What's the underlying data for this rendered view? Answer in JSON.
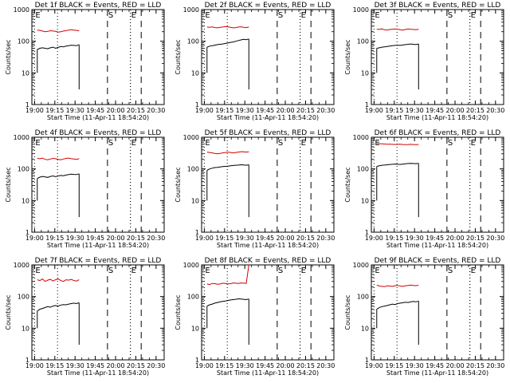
{
  "chart_data": [
    {
      "type": "line",
      "title": "Det 1f BLACK = Events, RED = LLD",
      "xlabel": "Start Time (11-Apr-11 18:54:20)",
      "ylabel": "Counts/sec",
      "yscale": "log",
      "ylim": [
        1,
        1000
      ],
      "xlim": [
        18.9667,
        20.6
      ],
      "x_tick_labels": [
        "19:00",
        "19:15",
        "19:30",
        "19:45",
        "20:00",
        "20:15",
        "20:30"
      ],
      "y_tick_labels": [
        "1",
        "10",
        "100",
        "1000"
      ],
      "lld_values": [
        225,
        220,
        210,
        200,
        205,
        215,
        210,
        205,
        195,
        200,
        210,
        215,
        225,
        230,
        225,
        220,
        215
      ],
      "events_values": [
        55,
        60,
        62,
        60,
        58,
        62,
        65,
        60,
        64,
        68,
        66,
        70,
        72,
        75,
        74,
        72,
        78
      ],
      "markers": [
        {
          "label": "E",
          "kind": "dotted",
          "time": "19:00"
        },
        {
          "label": "",
          "kind": "dotted",
          "time": "19:17"
        },
        {
          "label": "S",
          "kind": "dashed",
          "time": "19:54"
        },
        {
          "label": "",
          "kind": "dotted",
          "time": "20:11"
        },
        {
          "label": "E",
          "kind": "dotted",
          "time": "20:11"
        },
        {
          "label": "",
          "kind": "dashed",
          "time": "20:19"
        }
      ]
    },
    {
      "type": "line",
      "title": "Det 2f BLACK = Events, RED = LLD",
      "xlabel": "Start Time (11-Apr-11 18:54:20)",
      "ylabel": "Counts/sec",
      "yscale": "log",
      "ylim": [
        1,
        1000
      ],
      "xlim": [
        18.9667,
        20.6
      ],
      "x_tick_labels": [
        "19:00",
        "19:15",
        "19:30",
        "19:45",
        "20:00",
        "20:15",
        "20:30"
      ],
      "y_tick_labels": [
        "1",
        "10",
        "100",
        "1000"
      ],
      "lld_values": [
        280,
        275,
        285,
        270,
        265,
        275,
        280,
        290,
        285,
        275,
        265,
        270,
        280,
        285,
        275,
        270,
        280
      ],
      "events_values": [
        65,
        70,
        72,
        75,
        78,
        80,
        82,
        85,
        88,
        92,
        95,
        100,
        105,
        110,
        115,
        112,
        118
      ],
      "markers": [
        {
          "label": "E",
          "kind": "dotted",
          "time": "19:00"
        },
        {
          "label": "",
          "kind": "dotted",
          "time": "19:17"
        },
        {
          "label": "S",
          "kind": "dashed",
          "time": "19:54"
        },
        {
          "label": "",
          "kind": "dotted",
          "time": "20:11"
        },
        {
          "label": "E",
          "kind": "dotted",
          "time": "20:11"
        },
        {
          "label": "",
          "kind": "dashed",
          "time": "20:19"
        }
      ]
    },
    {
      "type": "line",
      "title": "Det 3f BLACK = Events, RED = LLD",
      "xlabel": "Start Time (11-Apr-11 18:54:20)",
      "ylabel": "Counts/sec",
      "yscale": "log",
      "ylim": [
        1,
        1000
      ],
      "xlim": [
        18.9667,
        20.6
      ],
      "x_tick_labels": [
        "19:00",
        "19:15",
        "19:30",
        "19:45",
        "20:00",
        "20:15",
        "20:30"
      ],
      "y_tick_labels": [
        "1",
        "10",
        "100",
        "1000"
      ],
      "lld_values": [
        240,
        235,
        245,
        230,
        225,
        235,
        240,
        245,
        240,
        230,
        225,
        235,
        245,
        240,
        235,
        230,
        240
      ],
      "events_values": [
        60,
        62,
        65,
        66,
        68,
        70,
        72,
        74,
        75,
        74,
        76,
        78,
        80,
        82,
        80,
        78,
        82
      ],
      "markers": [
        {
          "label": "E",
          "kind": "dotted",
          "time": "19:00"
        },
        {
          "label": "",
          "kind": "dotted",
          "time": "19:17"
        },
        {
          "label": "S",
          "kind": "dashed",
          "time": "19:54"
        },
        {
          "label": "",
          "kind": "dotted",
          "time": "20:11"
        },
        {
          "label": "E",
          "kind": "dotted",
          "time": "20:11"
        },
        {
          "label": "",
          "kind": "dashed",
          "time": "20:19"
        }
      ]
    },
    {
      "type": "line",
      "title": "Det 4f BLACK = Events, RED = LLD",
      "xlabel": "Start Time (11-Apr-11 18:54:20)",
      "ylabel": "Counts/sec",
      "yscale": "log",
      "ylim": [
        1,
        1000
      ],
      "xlim": [
        18.9667,
        20.6
      ],
      "x_tick_labels": [
        "19:00",
        "19:15",
        "19:30",
        "19:45",
        "20:00",
        "20:15",
        "20:30"
      ],
      "y_tick_labels": [
        "1",
        "10",
        "100",
        "1000"
      ],
      "lld_values": [
        215,
        210,
        220,
        200,
        195,
        205,
        215,
        210,
        200,
        195,
        205,
        215,
        220,
        210,
        205,
        200,
        210
      ],
      "events_values": [
        50,
        55,
        58,
        56,
        54,
        58,
        60,
        57,
        60,
        62,
        61,
        64,
        66,
        68,
        67,
        66,
        70
      ],
      "markers": [
        {
          "label": "E",
          "kind": "dotted",
          "time": "19:00"
        },
        {
          "label": "",
          "kind": "dotted",
          "time": "19:17"
        },
        {
          "label": "S",
          "kind": "dashed",
          "time": "19:54"
        },
        {
          "label": "",
          "kind": "dotted",
          "time": "20:11"
        },
        {
          "label": "E",
          "kind": "dotted",
          "time": "20:11"
        },
        {
          "label": "",
          "kind": "dashed",
          "time": "20:19"
        }
      ]
    },
    {
      "type": "line",
      "title": "Det 5f BLACK = Events, RED = LLD",
      "xlabel": "Start Time (11-Apr-11 18:54:20)",
      "ylabel": "Counts/sec",
      "yscale": "log",
      "ylim": [
        1,
        1000
      ],
      "xlim": [
        18.9667,
        20.6
      ],
      "x_tick_labels": [
        "19:00",
        "19:15",
        "19:30",
        "19:45",
        "20:00",
        "20:15",
        "20:30"
      ],
      "y_tick_labels": [
        "1",
        "10",
        "100",
        "1000"
      ],
      "lld_values": [
        340,
        330,
        320,
        310,
        300,
        310,
        320,
        330,
        340,
        330,
        320,
        330,
        340,
        350,
        345,
        340,
        345
      ],
      "events_values": [
        90,
        100,
        105,
        110,
        112,
        115,
        118,
        120,
        122,
        125,
        128,
        130,
        132,
        135,
        133,
        130,
        135
      ],
      "markers": [
        {
          "label": "E",
          "kind": "dotted",
          "time": "19:00"
        },
        {
          "label": "",
          "kind": "dotted",
          "time": "19:17"
        },
        {
          "label": "S",
          "kind": "dashed",
          "time": "19:54"
        },
        {
          "label": "",
          "kind": "dotted",
          "time": "20:11"
        },
        {
          "label": "E",
          "kind": "dotted",
          "time": "20:11"
        },
        {
          "label": "",
          "kind": "dashed",
          "time": "20:19"
        }
      ]
    },
    {
      "type": "line",
      "title": "Det 6f BLACK = Events, RED = LLD",
      "xlabel": "Start Time (11-Apr-11 18:54:20)",
      "ylabel": "Counts/sec",
      "yscale": "log",
      "ylim": [
        1,
        1000
      ],
      "xlim": [
        18.9667,
        20.6
      ],
      "x_tick_labels": [
        "19:00",
        "19:15",
        "19:30",
        "19:45",
        "20:00",
        "20:15",
        "20:30"
      ],
      "y_tick_labels": [
        "1",
        "10",
        "100",
        "1000"
      ],
      "lld_values": [
        640,
        630,
        620,
        610,
        605,
        600,
        595,
        590,
        595,
        600,
        590,
        585,
        590,
        595,
        590,
        585,
        590
      ],
      "events_values": [
        120,
        125,
        130,
        132,
        135,
        138,
        140,
        142,
        140,
        138,
        142,
        145,
        148,
        150,
        148,
        146,
        150
      ],
      "markers": [
        {
          "label": "E",
          "kind": "dotted",
          "time": "19:00"
        },
        {
          "label": "",
          "kind": "dotted",
          "time": "19:17"
        },
        {
          "label": "S",
          "kind": "dashed",
          "time": "19:54"
        },
        {
          "label": "",
          "kind": "dotted",
          "time": "20:11"
        },
        {
          "label": "E",
          "kind": "dotted",
          "time": "20:11"
        },
        {
          "label": "",
          "kind": "dashed",
          "time": "20:19"
        }
      ]
    },
    {
      "type": "line",
      "title": "Det 7f BLACK = Events, RED = LLD",
      "xlabel": "Start Time (11-Apr-11 18:54:20)",
      "ylabel": "Counts/sec",
      "yscale": "log",
      "ylim": [
        1,
        1000
      ],
      "xlim": [
        18.9667,
        20.6
      ],
      "x_tick_labels": [
        "19:00",
        "19:15",
        "19:30",
        "19:45",
        "20:00",
        "20:15",
        "20:30"
      ],
      "y_tick_labels": [
        "1",
        "10",
        "100",
        "1000"
      ],
      "lld_values": [
        340,
        320,
        360,
        300,
        330,
        350,
        310,
        340,
        360,
        320,
        300,
        340,
        330,
        350,
        320,
        310,
        340
      ],
      "events_values": [
        35,
        40,
        42,
        45,
        48,
        46,
        50,
        52,
        50,
        54,
        56,
        55,
        58,
        60,
        62,
        60,
        64
      ],
      "markers": [
        {
          "label": "E",
          "kind": "dotted",
          "time": "19:00"
        },
        {
          "label": "",
          "kind": "dotted",
          "time": "19:17"
        },
        {
          "label": "S",
          "kind": "dashed",
          "time": "19:54"
        },
        {
          "label": "",
          "kind": "dotted",
          "time": "20:11"
        },
        {
          "label": "E",
          "kind": "dotted",
          "time": "20:11"
        },
        {
          "label": "",
          "kind": "dashed",
          "time": "20:19"
        }
      ]
    },
    {
      "type": "line",
      "title": "Det 8f BLACK = Events, RED = LLD",
      "xlabel": "Start Time (11-Apr-11 18:54:20)",
      "ylabel": "Counts/sec",
      "yscale": "log",
      "ylim": [
        1,
        1000
      ],
      "xlim": [
        18.9667,
        20.6
      ],
      "x_tick_labels": [
        "19:00",
        "19:15",
        "19:30",
        "19:45",
        "20:00",
        "20:15",
        "20:30"
      ],
      "y_tick_labels": [
        "1",
        "10",
        "100",
        "1000"
      ],
      "lld_values": [
        250,
        240,
        260,
        255,
        245,
        250,
        265,
        260,
        250,
        255,
        270,
        265,
        260,
        270,
        265,
        260,
        1000
      ],
      "events_values": [
        50,
        55,
        58,
        62,
        65,
        68,
        70,
        72,
        75,
        78,
        80,
        82,
        85,
        84,
        82,
        80,
        84
      ],
      "markers": [
        {
          "label": "E",
          "kind": "dotted",
          "time": "19:00"
        },
        {
          "label": "",
          "kind": "dotted",
          "time": "19:17"
        },
        {
          "label": "S",
          "kind": "dashed",
          "time": "19:54"
        },
        {
          "label": "",
          "kind": "dotted",
          "time": "20:11"
        },
        {
          "label": "E",
          "kind": "dotted",
          "time": "20:11"
        },
        {
          "label": "",
          "kind": "dashed",
          "time": "20:19"
        }
      ]
    },
    {
      "type": "line",
      "title": "Det 9f BLACK = Events, RED = LLD",
      "xlabel": "Start Time (11-Apr-11 18:54:20)",
      "ylabel": "Counts/sec",
      "yscale": "log",
      "ylim": [
        1,
        1000
      ],
      "xlim": [
        18.9667,
        20.6
      ],
      "x_tick_labels": [
        "19:00",
        "19:15",
        "19:30",
        "19:45",
        "20:00",
        "20:15",
        "20:30"
      ],
      "y_tick_labels": [
        "1",
        "10",
        "100",
        "1000"
      ],
      "lld_values": [
        230,
        215,
        210,
        205,
        220,
        215,
        210,
        220,
        225,
        215,
        210,
        220,
        225,
        230,
        225,
        220,
        230
      ],
      "events_values": [
        40,
        45,
        48,
        50,
        52,
        55,
        58,
        56,
        60,
        62,
        64,
        66,
        65,
        68,
        70,
        68,
        72
      ],
      "markers": [
        {
          "label": "E",
          "kind": "dotted",
          "time": "19:00"
        },
        {
          "label": "",
          "kind": "dotted",
          "time": "19:17"
        },
        {
          "label": "S",
          "kind": "dashed",
          "time": "19:54"
        },
        {
          "label": "",
          "kind": "dotted",
          "time": "20:11"
        },
        {
          "label": "E",
          "kind": "dotted",
          "time": "20:11"
        },
        {
          "label": "",
          "kind": "dashed",
          "time": "20:19"
        }
      ]
    }
  ],
  "colors": {
    "events": "#000000",
    "lld": "#d40000",
    "background": "#ffffff"
  }
}
